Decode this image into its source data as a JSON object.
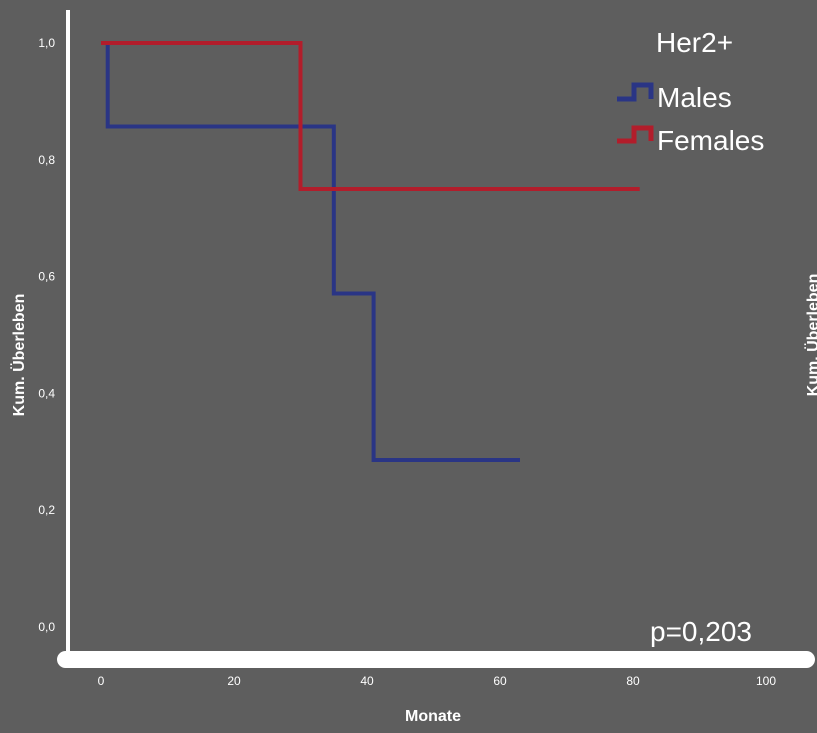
{
  "chart_data": {
    "type": "line",
    "step": true,
    "title": "Her2+",
    "xlabel": "Monate",
    "ylabel": "Kum. Überleben",
    "clipped_ylabel": "Kum. Überleben",
    "annotation": "p=0,203",
    "x_ticks": [
      {
        "value": 0,
        "label": "0"
      },
      {
        "value": 20,
        "label": "20"
      },
      {
        "value": 40,
        "label": "40"
      },
      {
        "value": 60,
        "label": "60"
      },
      {
        "value": 80,
        "label": "80"
      },
      {
        "value": 100,
        "label": "100"
      }
    ],
    "y_ticks": [
      {
        "value": 0.0,
        "label": "0,0"
      },
      {
        "value": 0.2,
        "label": "0,2"
      },
      {
        "value": 0.4,
        "label": "0,4"
      },
      {
        "value": 0.6,
        "label": "0,6"
      },
      {
        "value": 0.8,
        "label": "0,8"
      },
      {
        "value": 1.0,
        "label": "1,0"
      }
    ],
    "xlim": [
      0,
      100
    ],
    "ylim": [
      0,
      1
    ],
    "legend_position": "top-right",
    "grid": false,
    "colors": {
      "background": "#5e5e5e",
      "axis": "#ffffff",
      "text": "#ffffff",
      "males": "#2a3585",
      "females": "#b21d2b"
    },
    "series": [
      {
        "name": "Males",
        "color": "#2a3585",
        "x": [
          0,
          1,
          1,
          35,
          35,
          41,
          41,
          63
        ],
        "y": [
          1.0,
          1.0,
          0.857,
          0.857,
          0.571,
          0.571,
          0.286,
          0.286
        ]
      },
      {
        "name": "Females",
        "color": "#b21d2b",
        "x": [
          0,
          30,
          30,
          81
        ],
        "y": [
          1.0,
          1.0,
          0.75,
          0.75
        ]
      }
    ]
  }
}
